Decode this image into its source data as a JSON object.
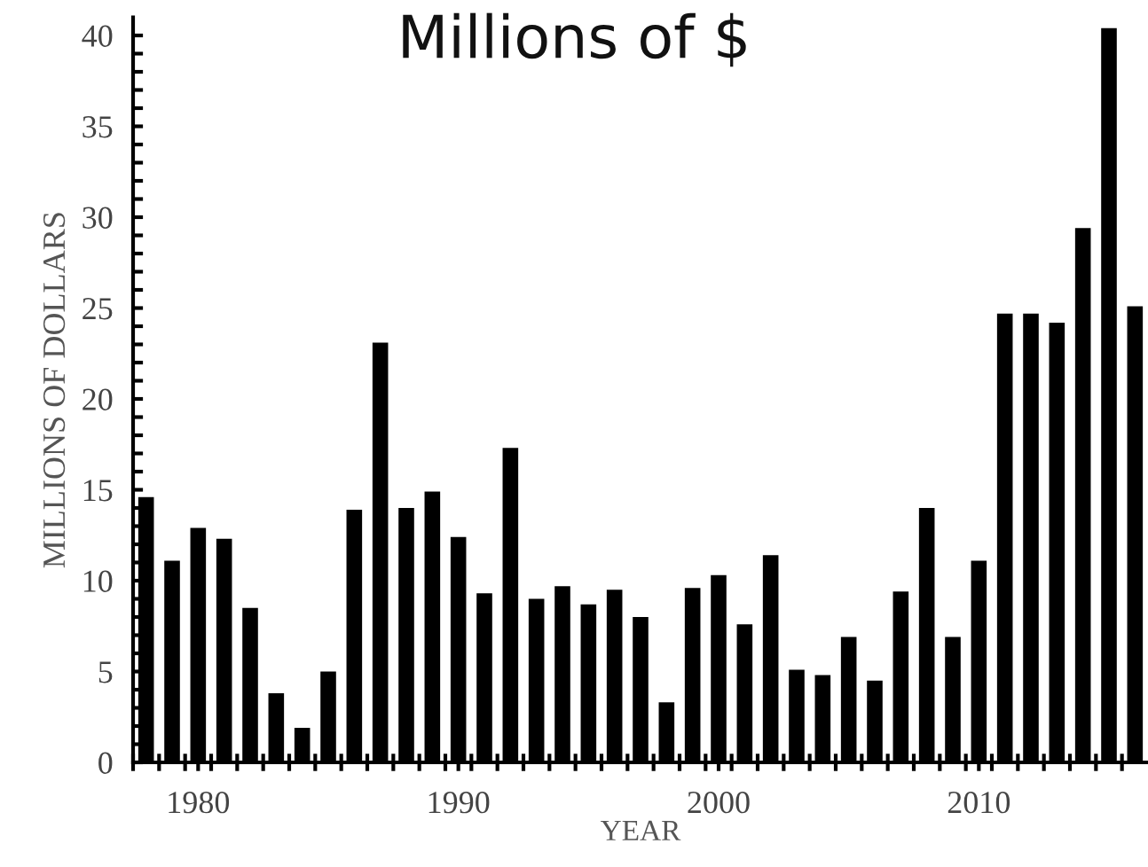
{
  "chart_data": {
    "type": "bar",
    "title": "Millions of $",
    "xlabel": "YEAR",
    "ylabel": "MILLIONS OF DOLLARS",
    "x": [
      1978,
      1979,
      1980,
      1981,
      1982,
      1983,
      1984,
      1985,
      1986,
      1987,
      1988,
      1989,
      1990,
      1991,
      1992,
      1993,
      1994,
      1995,
      1996,
      1997,
      1998,
      1999,
      2000,
      2001,
      2002,
      2003,
      2004,
      2005,
      2006,
      2007,
      2008,
      2009,
      2010,
      2011,
      2012,
      2013,
      2014,
      2015,
      2016
    ],
    "values": [
      14.6,
      11.1,
      12.9,
      12.3,
      8.5,
      3.8,
      1.9,
      5.0,
      13.9,
      23.1,
      14.0,
      14.9,
      12.4,
      9.3,
      17.3,
      9.0,
      9.7,
      8.7,
      9.5,
      8.0,
      3.3,
      9.6,
      10.3,
      7.6,
      11.4,
      5.1,
      4.8,
      6.9,
      4.5,
      9.4,
      14.0,
      6.9,
      11.1,
      24.7,
      24.7,
      24.2,
      29.4,
      40.4,
      25.1
    ],
    "color": "#000000",
    "xlim": [
      1977.5,
      2016.5
    ],
    "xticks": [
      {
        "value": 1977.5,
        "label": null
      },
      {
        "value": 1978.5,
        "label": null
      },
      {
        "value": 1979.5,
        "label": null
      },
      {
        "value": 1980,
        "label": "1980"
      },
      {
        "value": 1980.5,
        "label": null
      },
      {
        "value": 1981.5,
        "label": null
      },
      {
        "value": 1982.5,
        "label": null
      },
      {
        "value": 1983.5,
        "label": null
      },
      {
        "value": 1984.5,
        "label": null
      },
      {
        "value": 1985.5,
        "label": null
      },
      {
        "value": 1986.5,
        "label": null
      },
      {
        "value": 1987.5,
        "label": null
      },
      {
        "value": 1988.5,
        "label": null
      },
      {
        "value": 1989.5,
        "label": null
      },
      {
        "value": 1990,
        "label": "1990"
      },
      {
        "value": 1990.5,
        "label": null
      },
      {
        "value": 1991.5,
        "label": null
      },
      {
        "value": 1992.5,
        "label": null
      },
      {
        "value": 1993.5,
        "label": null
      },
      {
        "value": 1994.5,
        "label": null
      },
      {
        "value": 1995.5,
        "label": null
      },
      {
        "value": 1996.5,
        "label": null
      },
      {
        "value": 1997.5,
        "label": null
      },
      {
        "value": 1998.5,
        "label": null
      },
      {
        "value": 1999.5,
        "label": null
      },
      {
        "value": 2000,
        "label": "2000"
      },
      {
        "value": 2000.5,
        "label": null
      },
      {
        "value": 2001.5,
        "label": null
      },
      {
        "value": 2002.5,
        "label": null
      },
      {
        "value": 2003.5,
        "label": null
      },
      {
        "value": 2004.5,
        "label": null
      },
      {
        "value": 2005.5,
        "label": null
      },
      {
        "value": 2006.5,
        "label": null
      },
      {
        "value": 2007.5,
        "label": null
      },
      {
        "value": 2008.5,
        "label": null
      },
      {
        "value": 2009.5,
        "label": null
      },
      {
        "value": 2010,
        "label": "2010"
      },
      {
        "value": 2010.5,
        "label": null
      },
      {
        "value": 2011.5,
        "label": null
      },
      {
        "value": 2012.5,
        "label": null
      },
      {
        "value": 2013.5,
        "label": null
      },
      {
        "value": 2014.5,
        "label": null
      },
      {
        "value": 2015.5,
        "label": null
      }
    ],
    "ylim": [
      0,
      41
    ],
    "yticks": [
      0,
      {
        "value": 1,
        "label": null
      },
      {
        "value": 2,
        "label": null
      },
      {
        "value": 3,
        "label": null
      },
      {
        "value": 4,
        "label": null
      },
      5,
      {
        "value": 6,
        "label": null
      },
      {
        "value": 7,
        "label": null
      },
      {
        "value": 8,
        "label": null
      },
      {
        "value": 9,
        "label": null
      },
      10,
      {
        "value": 11,
        "label": null
      },
      {
        "value": 12,
        "label": null
      },
      {
        "value": 13,
        "label": null
      },
      {
        "value": 14,
        "label": null
      },
      15,
      {
        "value": 16,
        "label": null
      },
      {
        "value": 17,
        "label": null
      },
      {
        "value": 18,
        "label": null
      },
      {
        "value": 19,
        "label": null
      },
      20,
      {
        "value": 21,
        "label": null
      },
      {
        "value": 22,
        "label": null
      },
      {
        "value": 23,
        "label": null
      },
      {
        "value": 24,
        "label": null
      },
      25,
      {
        "value": 26,
        "label": null
      },
      {
        "value": 27,
        "label": null
      },
      {
        "value": 28,
        "label": null
      },
      {
        "value": 29,
        "label": null
      },
      30,
      {
        "value": 31,
        "label": null
      },
      {
        "value": 32,
        "label": null
      },
      {
        "value": 33,
        "label": null
      },
      {
        "value": 34,
        "label": null
      },
      35,
      {
        "value": 36,
        "label": null
      },
      {
        "value": 37,
        "label": null
      },
      {
        "value": 38,
        "label": null
      },
      {
        "value": 39,
        "label": null
      },
      40
    ],
    "grid": false,
    "legend": false
  }
}
